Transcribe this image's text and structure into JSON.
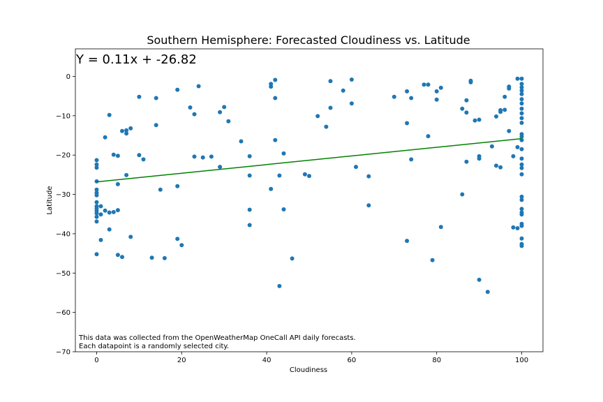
{
  "chart_data": {
    "type": "scatter",
    "title": "Southern Hemisphere: Forecasted Cloudiness vs. Latitude",
    "xlabel": "Cloudiness",
    "ylabel": "Latitude",
    "xlim": [
      -5,
      105
    ],
    "ylim": [
      -70,
      7
    ],
    "xticks": [
      0,
      20,
      40,
      60,
      80,
      100
    ],
    "yticks": [
      0,
      -10,
      -20,
      -30,
      -40,
      -50,
      -60,
      -70
    ],
    "grid": false,
    "marker_color": "#1f77b4",
    "regression": {
      "equation": "Y = 0.11x + -26.82",
      "slope": 0.11,
      "intercept": -26.82,
      "x_range": [
        0,
        100
      ],
      "color": "#008000"
    },
    "annotation_lines": [
      "This data was collected from the OpenWeatherMap OneCall API daily forecasts.",
      "Each datapoint is a randomly selected city."
    ],
    "points": [
      [
        0,
        -21.3
      ],
      [
        0,
        -22.4
      ],
      [
        0,
        -23.2
      ],
      [
        0,
        -26.7
      ],
      [
        0,
        -28.8
      ],
      [
        0,
        -29.6
      ],
      [
        0,
        -30.2
      ],
      [
        0,
        -32.0
      ],
      [
        0,
        -33.0
      ],
      [
        0,
        -33.6
      ],
      [
        0,
        -34.2
      ],
      [
        0,
        -34.8
      ],
      [
        0,
        -35.7
      ],
      [
        0,
        -36.9
      ],
      [
        0,
        -45.2
      ],
      [
        1,
        -33.0
      ],
      [
        1,
        -35.1
      ],
      [
        1,
        -41.6
      ],
      [
        2,
        -15.5
      ],
      [
        2,
        -34.1
      ],
      [
        3,
        -9.8
      ],
      [
        3,
        -34.6
      ],
      [
        3,
        -38.9
      ],
      [
        4,
        -19.9
      ],
      [
        4,
        -34.5
      ],
      [
        5,
        -20.2
      ],
      [
        5,
        -27.4
      ],
      [
        5,
        -34.0
      ],
      [
        5,
        -45.4
      ],
      [
        6,
        -13.9
      ],
      [
        6,
        -45.9
      ],
      [
        7,
        -13.7
      ],
      [
        7,
        -14.5
      ],
      [
        7,
        -25.1
      ],
      [
        8,
        -13.2
      ],
      [
        8,
        -40.8
      ],
      [
        10,
        -5.2
      ],
      [
        10,
        -20.0
      ],
      [
        11,
        -21.1
      ],
      [
        13,
        -46.1
      ],
      [
        14,
        -5.5
      ],
      [
        14,
        -12.4
      ],
      [
        15,
        -28.8
      ],
      [
        16,
        -46.2
      ],
      [
        19,
        -3.4
      ],
      [
        19,
        -27.9
      ],
      [
        19,
        -41.3
      ],
      [
        20,
        -42.9
      ],
      [
        22,
        -7.9
      ],
      [
        23,
        -9.6
      ],
      [
        23,
        -20.4
      ],
      [
        24,
        -2.5
      ],
      [
        25,
        -20.6
      ],
      [
        27,
        -20.4
      ],
      [
        29,
        -9.1
      ],
      [
        29,
        -23.0
      ],
      [
        30,
        -7.8
      ],
      [
        31,
        -11.4
      ],
      [
        34,
        -16.5
      ],
      [
        36,
        -20.3
      ],
      [
        36,
        -25.2
      ],
      [
        36,
        -33.9
      ],
      [
        36,
        -37.8
      ],
      [
        41,
        -1.9
      ],
      [
        41,
        -2.6
      ],
      [
        41,
        -28.6
      ],
      [
        42,
        -0.9
      ],
      [
        42,
        -5.5
      ],
      [
        42,
        -16.2
      ],
      [
        43,
        -25.2
      ],
      [
        43,
        -53.3
      ],
      [
        44,
        -19.6
      ],
      [
        44,
        -33.8
      ],
      [
        46,
        -46.3
      ],
      [
        49,
        -24.9
      ],
      [
        50,
        -25.3
      ],
      [
        52,
        -10.1
      ],
      [
        54,
        -12.8
      ],
      [
        55,
        -1.2
      ],
      [
        55,
        -8.0
      ],
      [
        58,
        -3.6
      ],
      [
        60,
        -0.8
      ],
      [
        60,
        -6.9
      ],
      [
        61,
        -23.0
      ],
      [
        64,
        -25.4
      ],
      [
        64,
        -32.8
      ],
      [
        70,
        -5.2
      ],
      [
        73,
        -3.8
      ],
      [
        73,
        -11.9
      ],
      [
        73,
        -41.8
      ],
      [
        74,
        -5.5
      ],
      [
        74,
        -21.1
      ],
      [
        77,
        -2.1
      ],
      [
        78,
        -2.1
      ],
      [
        78,
        -15.2
      ],
      [
        79,
        -46.7
      ],
      [
        80,
        -3.8
      ],
      [
        80,
        -5.9
      ],
      [
        81,
        -2.9
      ],
      [
        81,
        -38.3
      ],
      [
        86,
        -8.2
      ],
      [
        86,
        -30.0
      ],
      [
        87,
        -6.1
      ],
      [
        87,
        -9.2
      ],
      [
        87,
        -21.7
      ],
      [
        88,
        -1.1
      ],
      [
        88,
        -1.5
      ],
      [
        89,
        -11.2
      ],
      [
        90,
        -11.0
      ],
      [
        90,
        -20.3
      ],
      [
        90,
        -20.9
      ],
      [
        90,
        -51.7
      ],
      [
        92,
        -54.8
      ],
      [
        93,
        -17.8
      ],
      [
        94,
        -10.2
      ],
      [
        94,
        -22.7
      ],
      [
        95,
        -8.6
      ],
      [
        95,
        -9.0
      ],
      [
        95,
        -23.1
      ],
      [
        96,
        -5.2
      ],
      [
        96,
        -8.5
      ],
      [
        97,
        -2.6
      ],
      [
        97,
        -3.1
      ],
      [
        97,
        -13.9
      ],
      [
        98,
        -20.3
      ],
      [
        98,
        -38.4
      ],
      [
        99,
        -0.6
      ],
      [
        99,
        -18.0
      ],
      [
        99,
        -38.6
      ],
      [
        100,
        -0.6
      ],
      [
        100,
        -1.9
      ],
      [
        100,
        -2.8
      ],
      [
        100,
        -3.6
      ],
      [
        100,
        -4.5
      ],
      [
        100,
        -5.8
      ],
      [
        100,
        -6.9
      ],
      [
        100,
        -8.2
      ],
      [
        100,
        -9.4
      ],
      [
        100,
        -10.6
      ],
      [
        100,
        -11.8
      ],
      [
        100,
        -14.7
      ],
      [
        100,
        -15.3
      ],
      [
        100,
        -16.2
      ],
      [
        100,
        -18.5
      ],
      [
        100,
        -20.9
      ],
      [
        100,
        -22.4
      ],
      [
        100,
        -23.3
      ],
      [
        100,
        -24.9
      ],
      [
        100,
        -30.6
      ],
      [
        100,
        -31.4
      ],
      [
        100,
        -33.7
      ],
      [
        100,
        -34.6
      ],
      [
        100,
        -35.1
      ],
      [
        100,
        -37.5
      ],
      [
        100,
        -38.0
      ],
      [
        100,
        -41.2
      ],
      [
        100,
        -42.6
      ],
      [
        100,
        -43.1
      ]
    ]
  }
}
